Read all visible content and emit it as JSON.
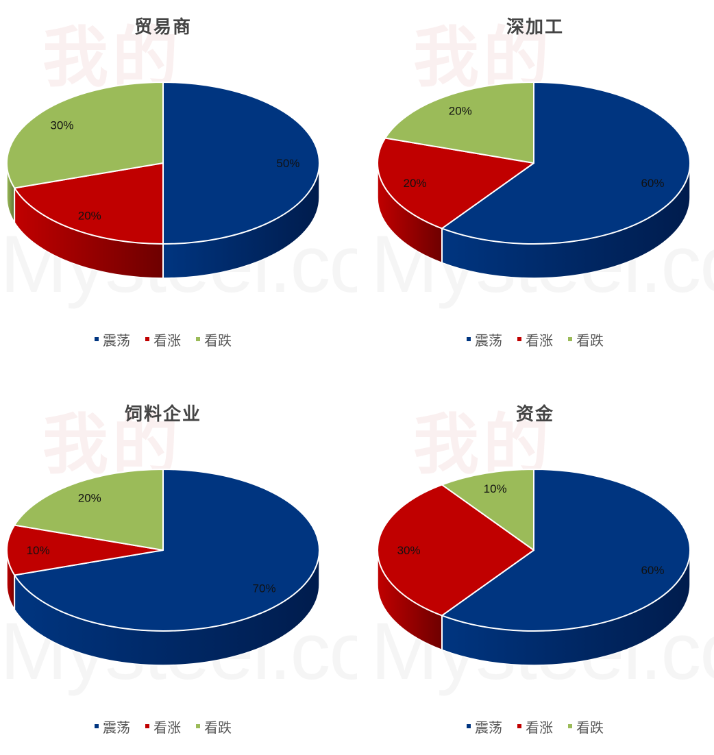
{
  "watermark": {
    "cn": "我的",
    "en": "Mysteel.com"
  },
  "legend": [
    "震荡",
    "看涨",
    "看跌"
  ],
  "colors": {
    "zhendang": "#003580",
    "kanzhang": "#C00000",
    "kandie": "#9BBB59",
    "zhendang_side": "#001c4d",
    "kanzhang_side": "#6e0000",
    "kandie_side": "#5d7332"
  },
  "chart_data": [
    {
      "type": "pie",
      "title": "贸易商",
      "categories": [
        "震荡",
        "看涨",
        "看跌"
      ],
      "values": [
        50,
        20,
        30
      ],
      "labels": [
        "50%",
        "20%",
        "30%"
      ],
      "legend_position": "bottom",
      "style": "3d"
    },
    {
      "type": "pie",
      "title": "深加工",
      "categories": [
        "震荡",
        "看涨",
        "看跌"
      ],
      "values": [
        60,
        20,
        20
      ],
      "labels": [
        "60%",
        "20%",
        "20%"
      ],
      "legend_position": "bottom",
      "style": "3d"
    },
    {
      "type": "pie",
      "title": "饲料企业",
      "categories": [
        "震荡",
        "看涨",
        "看跌"
      ],
      "values": [
        70,
        10,
        20
      ],
      "labels": [
        "70%",
        "10%",
        "20%"
      ],
      "legend_position": "bottom",
      "style": "3d"
    },
    {
      "type": "pie",
      "title": "资金",
      "categories": [
        "震荡",
        "看涨",
        "看跌"
      ],
      "values": [
        60,
        30,
        10
      ],
      "labels": [
        "60%",
        "30%",
        "10%"
      ],
      "legend_position": "bottom",
      "style": "3d"
    }
  ]
}
